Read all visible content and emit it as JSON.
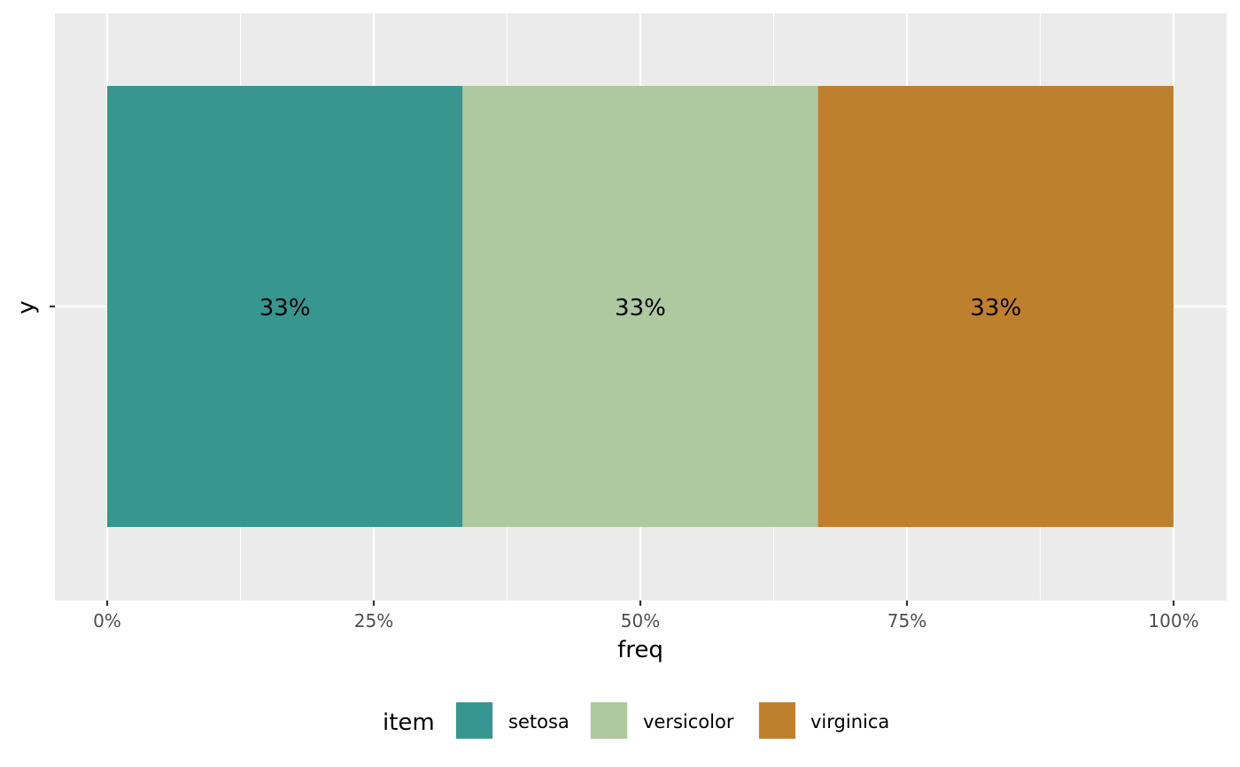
{
  "chart_data": {
    "type": "bar",
    "orientation": "horizontal",
    "stacked": true,
    "categories": [
      "y"
    ],
    "series": [
      {
        "name": "setosa",
        "values": [
          0.3333
        ],
        "label": "33%",
        "color": "#37968f"
      },
      {
        "name": "versicolor",
        "values": [
          0.3333
        ],
        "label": "33%",
        "color": "#aec89f"
      },
      {
        "name": "virginica",
        "values": [
          0.3334
        ],
        "label": "33%",
        "color": "#bf802e"
      }
    ],
    "xlabel": "freq",
    "ylabel": "y",
    "xlim": [
      0,
      1
    ],
    "x_ticks": [
      {
        "value": 0,
        "label": "0%"
      },
      {
        "value": 0.25,
        "label": "25%"
      },
      {
        "value": 0.5,
        "label": "50%"
      },
      {
        "value": 0.75,
        "label": "75%"
      },
      {
        "value": 1,
        "label": "100%"
      }
    ],
    "y_ticks": [
      {
        "value": "y",
        "label": "y"
      }
    ],
    "grid": true,
    "panel_background": "#ebebeb",
    "grid_color": "#ffffff",
    "legend": {
      "title": "item",
      "position": "bottom"
    }
  }
}
